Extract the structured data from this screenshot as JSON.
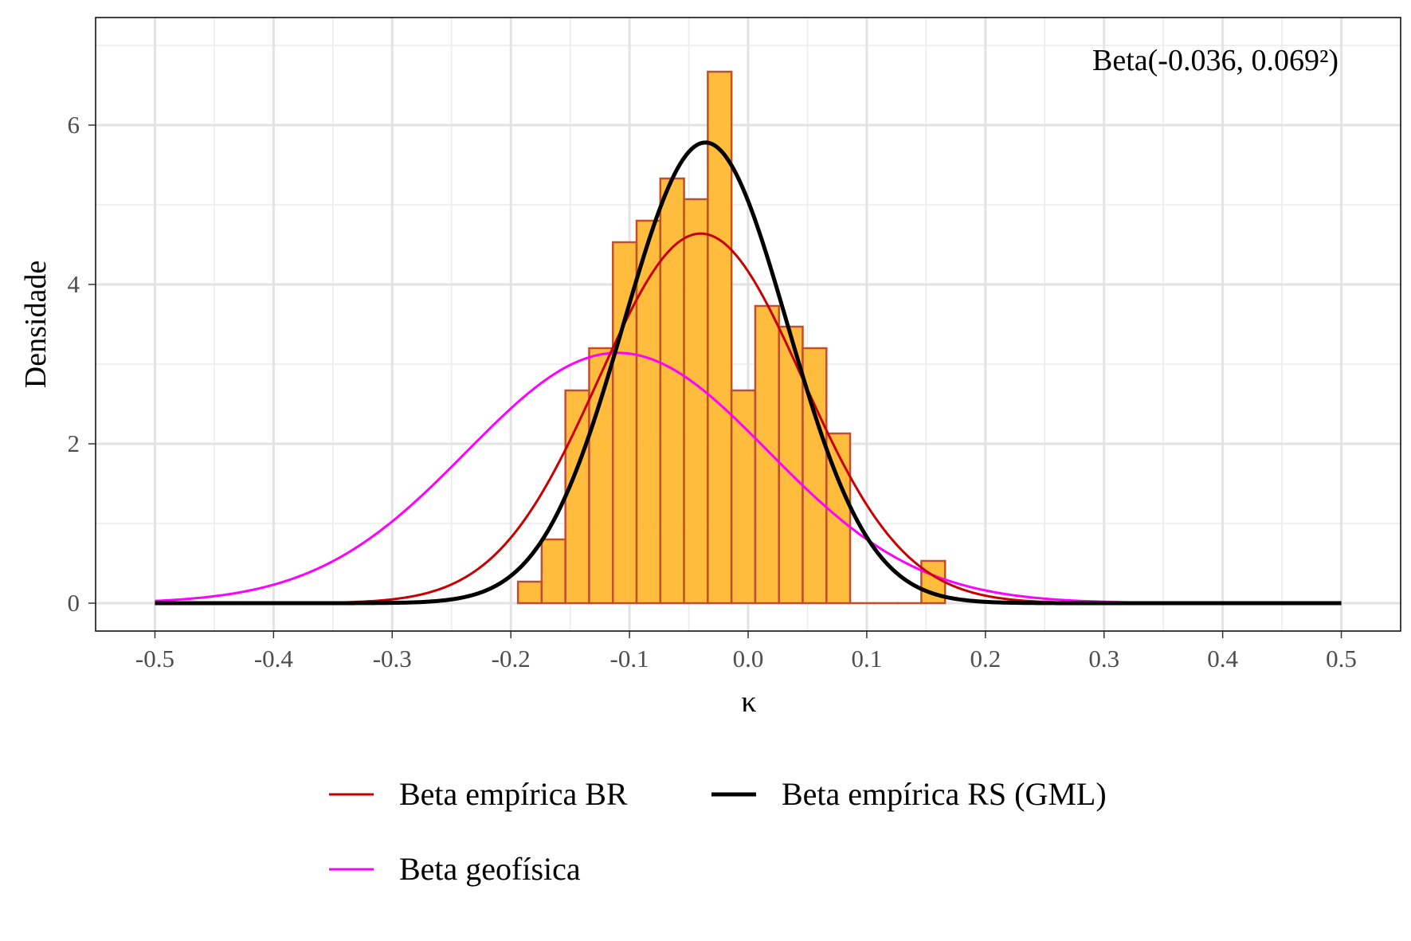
{
  "chart_data": {
    "type": "bar",
    "subtype": "histogram with density curves",
    "xlabel": "κ",
    "ylabel": "Densidade",
    "xlim": [
      -0.55,
      0.55
    ],
    "ylim": [
      -0.35,
      7.35
    ],
    "x_ticks": [
      {
        "value": -0.5,
        "label": "-0.5"
      },
      {
        "value": -0.4,
        "label": "-0.4"
      },
      {
        "value": -0.3,
        "label": "-0.3"
      },
      {
        "value": -0.2,
        "label": "-0.2"
      },
      {
        "value": -0.1,
        "label": "-0.1"
      },
      {
        "value": 0.0,
        "label": "0.0"
      },
      {
        "value": 0.1,
        "label": "0.1"
      },
      {
        "value": 0.2,
        "label": "0.2"
      },
      {
        "value": 0.3,
        "label": "0.3"
      },
      {
        "value": 0.4,
        "label": "0.4"
      },
      {
        "value": 0.5,
        "label": "0.5"
      }
    ],
    "y_ticks": [
      {
        "value": 0,
        "label": "0"
      },
      {
        "value": 2,
        "label": "2"
      },
      {
        "value": 4,
        "label": "4"
      },
      {
        "value": 6,
        "label": "6"
      }
    ],
    "grid": true,
    "annotation": "Beta(-0.036, 0.069²)",
    "histogram": {
      "bin_width": 0.02,
      "bins": [
        {
          "x0": -0.194,
          "density": 0.27
        },
        {
          "x0": -0.174,
          "density": 0.8
        },
        {
          "x0": -0.154,
          "density": 2.67
        },
        {
          "x0": -0.134,
          "density": 3.2
        },
        {
          "x0": -0.114,
          "density": 4.53
        },
        {
          "x0": -0.094,
          "density": 4.8
        },
        {
          "x0": -0.074,
          "density": 5.33
        },
        {
          "x0": -0.054,
          "density": 5.07
        },
        {
          "x0": -0.034,
          "density": 6.67
        },
        {
          "x0": -0.014,
          "density": 2.67
        },
        {
          "x0": 0.006,
          "density": 3.73
        },
        {
          "x0": 0.026,
          "density": 3.47
        },
        {
          "x0": 0.046,
          "density": 3.2
        },
        {
          "x0": 0.066,
          "density": 2.13
        },
        {
          "x0": 0.086,
          "density": 0
        },
        {
          "x0": 0.106,
          "density": 0
        },
        {
          "x0": 0.126,
          "density": 0
        },
        {
          "x0": 0.146,
          "density": 0.53
        }
      ],
      "fill": "#ffb833",
      "stroke": "#c0502a"
    },
    "series": [
      {
        "name": "Beta empírica BR",
        "color": "#c90000",
        "mean": -0.04,
        "sd": 0.086,
        "x_range": [
          -0.5,
          0.5
        ],
        "line_weight": "thin"
      },
      {
        "name": "Beta empírica RS (GML)",
        "color": "#000000",
        "mean": -0.036,
        "sd": 0.069,
        "x_range": [
          -0.5,
          0.5
        ],
        "line_weight": "thick"
      },
      {
        "name": "Beta geofísica",
        "color": "#ff00ff",
        "mean": -0.11,
        "sd": 0.127,
        "x_range": [
          -0.5,
          0.5
        ],
        "line_weight": "thin"
      }
    ],
    "legend_position": "bottom"
  }
}
